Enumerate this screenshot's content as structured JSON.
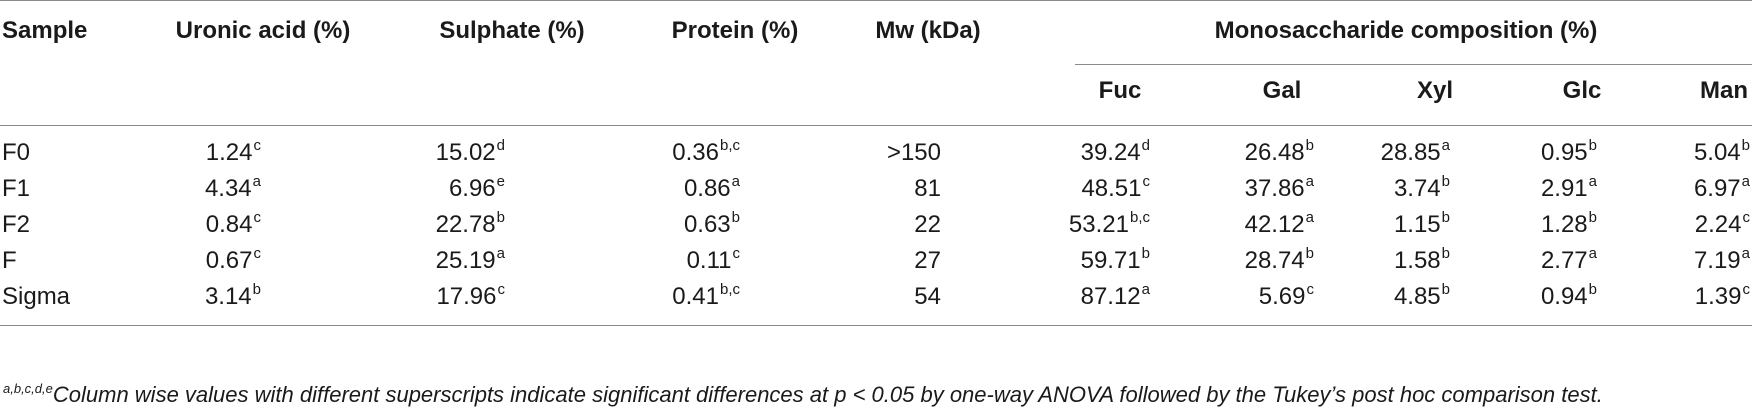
{
  "headers": {
    "sample": "Sample",
    "uronic": "Uronic acid (%)",
    "sulphate": "Sulphate (%)",
    "protein": "Protein (%)",
    "mw": "Mw (kDa)",
    "mono_group": "Monosaccharide composition (%)",
    "fuc": "Fuc",
    "gal": "Gal",
    "xyl": "Xyl",
    "glc": "Glc",
    "man": "Man"
  },
  "rows": [
    {
      "sample": "F0",
      "uronic": "1.24",
      "uronic_sup": "c",
      "sulphate": "15.02",
      "sulphate_sup": "d",
      "protein": "0.36",
      "protein_sup": "b,c",
      "mw": ">150",
      "fuc": "39.24",
      "fuc_sup": "d",
      "gal": "26.48",
      "gal_sup": "b",
      "xyl": "28.85",
      "xyl_sup": "a",
      "glc": "0.95",
      "glc_sup": "b",
      "man": "5.04",
      "man_sup": "b"
    },
    {
      "sample": "F1",
      "uronic": "4.34",
      "uronic_sup": "a",
      "sulphate": "6.96",
      "sulphate_sup": "e",
      "protein": "0.86",
      "protein_sup": "a",
      "mw": "81",
      "fuc": "48.51",
      "fuc_sup": "c",
      "gal": "37.86",
      "gal_sup": "a",
      "xyl": "3.74",
      "xyl_sup": "b",
      "glc": "2.91",
      "glc_sup": "a",
      "man": "6.97",
      "man_sup": "a"
    },
    {
      "sample": "F2",
      "uronic": "0.84",
      "uronic_sup": "c",
      "sulphate": "22.78",
      "sulphate_sup": "b",
      "protein": "0.63",
      "protein_sup": "b",
      "mw": "22",
      "fuc": "53.21",
      "fuc_sup": "b,c",
      "gal": "42.12",
      "gal_sup": "a",
      "xyl": "1.15",
      "xyl_sup": "b",
      "glc": "1.28",
      "glc_sup": "b",
      "man": "2.24",
      "man_sup": "c"
    },
    {
      "sample": "F",
      "uronic": "0.67",
      "uronic_sup": "c",
      "sulphate": "25.19",
      "sulphate_sup": "a",
      "protein": "0.11",
      "protein_sup": "c",
      "mw": "27",
      "fuc": "59.71",
      "fuc_sup": "b",
      "gal": "28.74",
      "gal_sup": "b",
      "xyl": "1.58",
      "xyl_sup": "b",
      "glc": "2.77",
      "glc_sup": "a",
      "man": "7.19",
      "man_sup": "a"
    },
    {
      "sample": "Sigma",
      "uronic": "3.14",
      "uronic_sup": "b",
      "sulphate": "17.96",
      "sulphate_sup": "c",
      "protein": "0.41",
      "protein_sup": "b,c",
      "mw": "54",
      "fuc": "87.12",
      "fuc_sup": "a",
      "gal": "5.69",
      "gal_sup": "c",
      "xyl": "4.85",
      "xyl_sup": "b",
      "glc": "0.94",
      "glc_sup": "b",
      "man": "1.39",
      "man_sup": "c"
    }
  ],
  "footnote": {
    "sup": "a,b,c,d,e",
    "text": "Column wise values with different superscripts indicate significant differences at p < 0.05 by one-way ANOVA followed by the Tukey’s post hoc comparison test."
  }
}
